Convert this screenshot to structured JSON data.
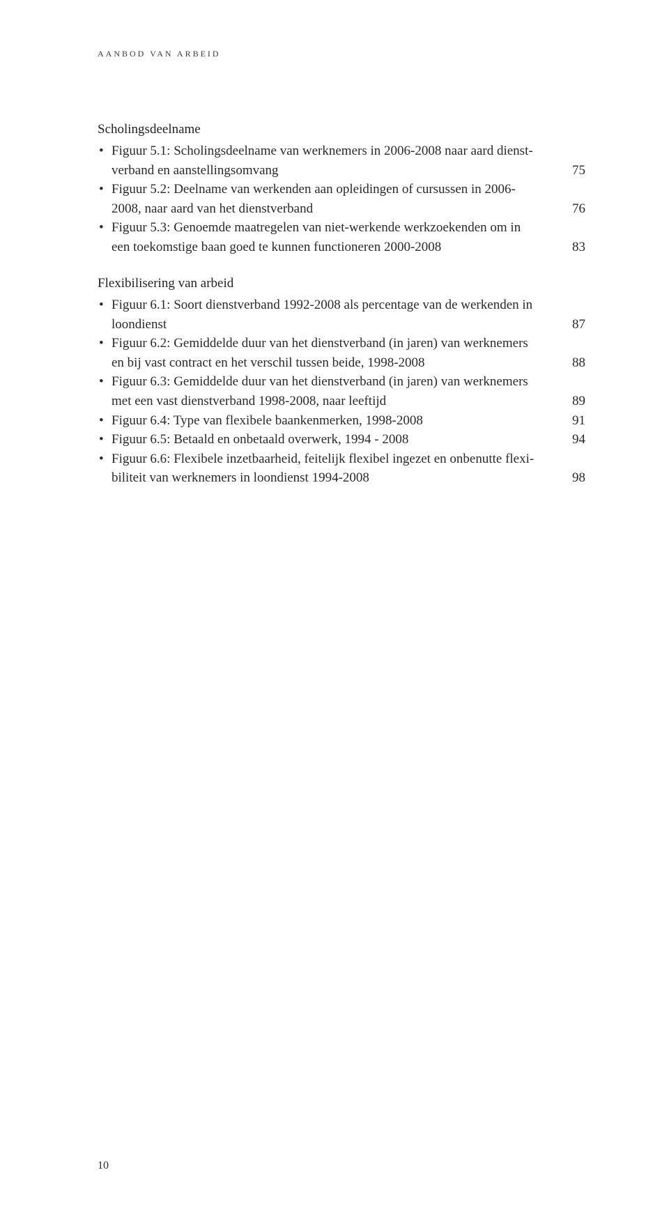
{
  "running_head": "AANBOD VAN ARBEID",
  "sections": [
    {
      "title": "Scholingsdeelname",
      "entries": [
        {
          "lines": [
            "Figuur 5.1: Scholingsdeelname van werknemers in 2006-2008 naar aard dienst-",
            "verband en aanstellingsomvang"
          ],
          "page": "75"
        },
        {
          "lines": [
            "Figuur 5.2: Deelname van werkenden aan opleidingen of cursussen in 2006-",
            "2008, naar aard van het dienstverband"
          ],
          "page": "76"
        },
        {
          "lines": [
            "Figuur 5.3: Genoemde maatregelen van niet-werkende werkzoekenden om in",
            "een toekomstige baan goed te kunnen functioneren 2000-2008"
          ],
          "page": "83"
        }
      ]
    },
    {
      "title": "Flexibilisering van arbeid",
      "entries": [
        {
          "lines": [
            "Figuur 6.1: Soort dienstverband 1992-2008 als percentage van de werkenden in",
            "loondienst"
          ],
          "page": "87"
        },
        {
          "lines": [
            "Figuur 6.2: Gemiddelde duur van het dienstverband (in jaren) van werknemers",
            "en bij vast contract en het verschil tussen beide, 1998-2008"
          ],
          "page": "88"
        },
        {
          "lines": [
            "Figuur 6.3: Gemiddelde duur van het dienstverband (in jaren) van werknemers",
            "met een vast dienstverband 1998-2008, naar leeftijd"
          ],
          "page": "89"
        },
        {
          "lines": [
            "Figuur 6.4: Type van flexibele baankenmerken, 1998-2008"
          ],
          "page": "91"
        },
        {
          "lines": [
            "Figuur 6.5: Betaald en onbetaald overwerk, 1994 - 2008"
          ],
          "page": "94"
        },
        {
          "lines": [
            "Figuur 6.6: Flexibele inzetbaarheid, feitelijk flexibel ingezet en onbenutte flexi-",
            "biliteit van werknemers in loondienst 1994-2008"
          ],
          "page": "98"
        }
      ]
    }
  ],
  "page_number": "10"
}
